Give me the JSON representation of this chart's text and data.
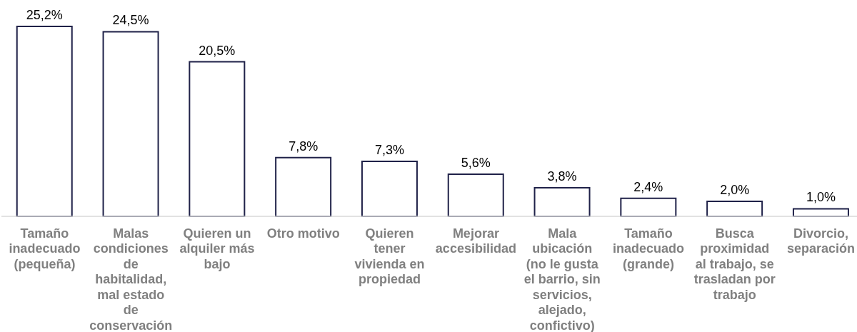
{
  "chart_data": {
    "type": "bar",
    "categories": [
      "Tamaño inadecuado (pequeña)",
      "Malas condiciones de habitalidad, mal estado de conservación",
      "Quieren un alquiler más bajo",
      "Otro motivo",
      "Quieren tener vivienda en propiedad",
      "Mejorar accesibilidad",
      "Mala ubicación (no le gusta el barrio, sin servicios, alejado, confictivo)",
      "Tamaño inadecuado (grande)",
      "Busca proximidad al trabajo, se trasladan por trabajo",
      "Divorcio, separación"
    ],
    "values": [
      25.2,
      24.5,
      20.5,
      7.8,
      7.3,
      5.6,
      3.8,
      2.4,
      2.0,
      1.0
    ],
    "color": "#1f2148",
    "value_labels": [
      "25,2%",
      "24,5%",
      "20,5%",
      "7,8%",
      "7,3%",
      "5,6%",
      "3,8%",
      "2,4%",
      "2,0%",
      "1,0%"
    ]
  }
}
